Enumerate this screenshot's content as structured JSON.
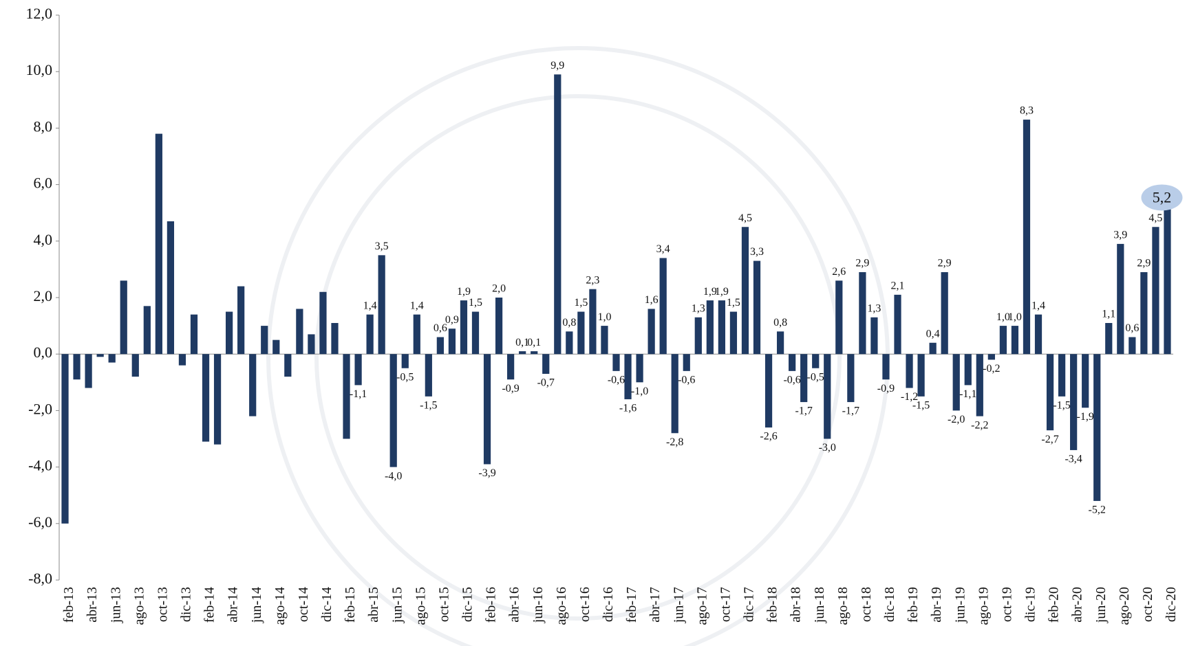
{
  "chart_data": {
    "type": "bar",
    "color": "#1f3a63",
    "categories": [
      "feb-13",
      null,
      "abr-13",
      null,
      "jun-13",
      null,
      "ago-13",
      null,
      "oct-13",
      null,
      "dic-13",
      null,
      "feb-14",
      null,
      "abr-14",
      null,
      "jun-14",
      null,
      "ago-14",
      null,
      "oct-14",
      null,
      "dic-14",
      null,
      "feb-15",
      null,
      "abr-15",
      null,
      "jun-15",
      null,
      "ago-15",
      null,
      "oct-15",
      null,
      "dic-15",
      null,
      "feb-16",
      null,
      "abr-16",
      null,
      "jun-16",
      null,
      "ago-16",
      null,
      "oct-16",
      null,
      "dic-16",
      null,
      "feb-17",
      null,
      "abr-17",
      null,
      "jun-17",
      null,
      "ago-17",
      null,
      "oct-17",
      null,
      "dic-17",
      null,
      "feb-18",
      null,
      "abr-18",
      null,
      "jun-18",
      null,
      "ago-18",
      null,
      "oct-18",
      null,
      "dic-18",
      null,
      "feb-19",
      null,
      "abr-19",
      null,
      "jun-19",
      null,
      "ago-19",
      null,
      "oct-19",
      null,
      "dic-19",
      null,
      "feb-20",
      null,
      "abr-20",
      null,
      "jun-20",
      null,
      "ago-20",
      null,
      "oct-20",
      null,
      "dic-20"
    ],
    "values": [
      -6.0,
      -0.9,
      -1.2,
      -0.1,
      -0.3,
      2.6,
      -0.8,
      1.7,
      7.8,
      4.7,
      -0.4,
      1.4,
      -3.1,
      -3.2,
      1.5,
      2.4,
      -2.2,
      1.0,
      0.5,
      -0.8,
      1.6,
      0.7,
      2.2,
      1.1,
      -3.0,
      -1.1,
      1.4,
      3.5,
      -4.0,
      -0.5,
      1.4,
      -1.5,
      0.6,
      0.9,
      1.9,
      1.5,
      -3.9,
      2.0,
      -0.9,
      0.1,
      0.1,
      -0.7,
      9.9,
      0.8,
      1.5,
      2.3,
      1.0,
      -0.6,
      -1.6,
      -1.0,
      1.6,
      3.4,
      -2.8,
      -0.6,
      1.3,
      1.9,
      1.9,
      1.5,
      4.5,
      3.3,
      -2.6,
      0.8,
      -0.6,
      -1.7,
      -0.5,
      -3.0,
      2.6,
      -1.7,
      2.9,
      1.3,
      -0.9,
      2.1,
      -1.2,
      -1.5,
      0.4,
      2.9,
      -2.0,
      -1.1,
      -2.2,
      -0.2,
      1.0,
      1.0,
      8.3,
      1.4,
      -2.7,
      -1.5,
      -3.4,
      -1.9,
      -5.2,
      1.1,
      3.9,
      0.6,
      2.9,
      4.5,
      5.2
    ],
    "value_labels": [
      null,
      null,
      null,
      null,
      null,
      null,
      null,
      null,
      null,
      null,
      null,
      null,
      null,
      null,
      null,
      null,
      null,
      null,
      null,
      null,
      null,
      null,
      null,
      null,
      null,
      "-1,1",
      "1,4",
      "3,5",
      "-4,0",
      "-0,5",
      "1,4",
      "-1,5",
      "0,6",
      "0,9",
      "1,9",
      "1,5",
      "-3,9",
      "2,0",
      "-0,9",
      "0,1",
      "0,1",
      "-0,7",
      "9,9",
      "0,8",
      "1,5",
      "2,3",
      "1,0",
      "-0,6",
      "-1,6",
      "-1,0",
      "1,6",
      "3,4",
      "-2,8",
      "-0,6",
      "1,3",
      "1,9",
      "1,9",
      "1,5",
      "4,5",
      "3,3",
      "-2,6",
      "0,8",
      "-0,6",
      "-1,7",
      "-0,5",
      "-3,0",
      "2,6",
      "-1,7",
      "2,9",
      "1,3",
      "-0,9",
      "2,1",
      "-1,2",
      "-1,5",
      "0,4",
      "2,9",
      "-2,0",
      "-1,1",
      "-2,2",
      "-0,2",
      "1,0",
      "1,0",
      "8,3",
      "1,4",
      "-2,7",
      "-1,5",
      "-3,4",
      "-1,9",
      "-5,2",
      "1,1",
      "3,9",
      "0,6",
      "2,9",
      "4,5",
      "5,2"
    ],
    "ylim": [
      -8,
      12
    ],
    "yticks": [
      {
        "value": -8,
        "label": "-8,0"
      },
      {
        "value": -6,
        "label": "-6,0"
      },
      {
        "value": -4,
        "label": "-4,0"
      },
      {
        "value": -2,
        "label": "-2,0"
      },
      {
        "value": 0,
        "label": "0,0"
      },
      {
        "value": 2,
        "label": "2,0"
      },
      {
        "value": 4,
        "label": "4,0"
      },
      {
        "value": 6,
        "label": "6,0"
      },
      {
        "value": 8,
        "label": "8,0"
      },
      {
        "value": 10,
        "label": "10,0"
      },
      {
        "value": 12,
        "label": "12,0"
      }
    ]
  }
}
